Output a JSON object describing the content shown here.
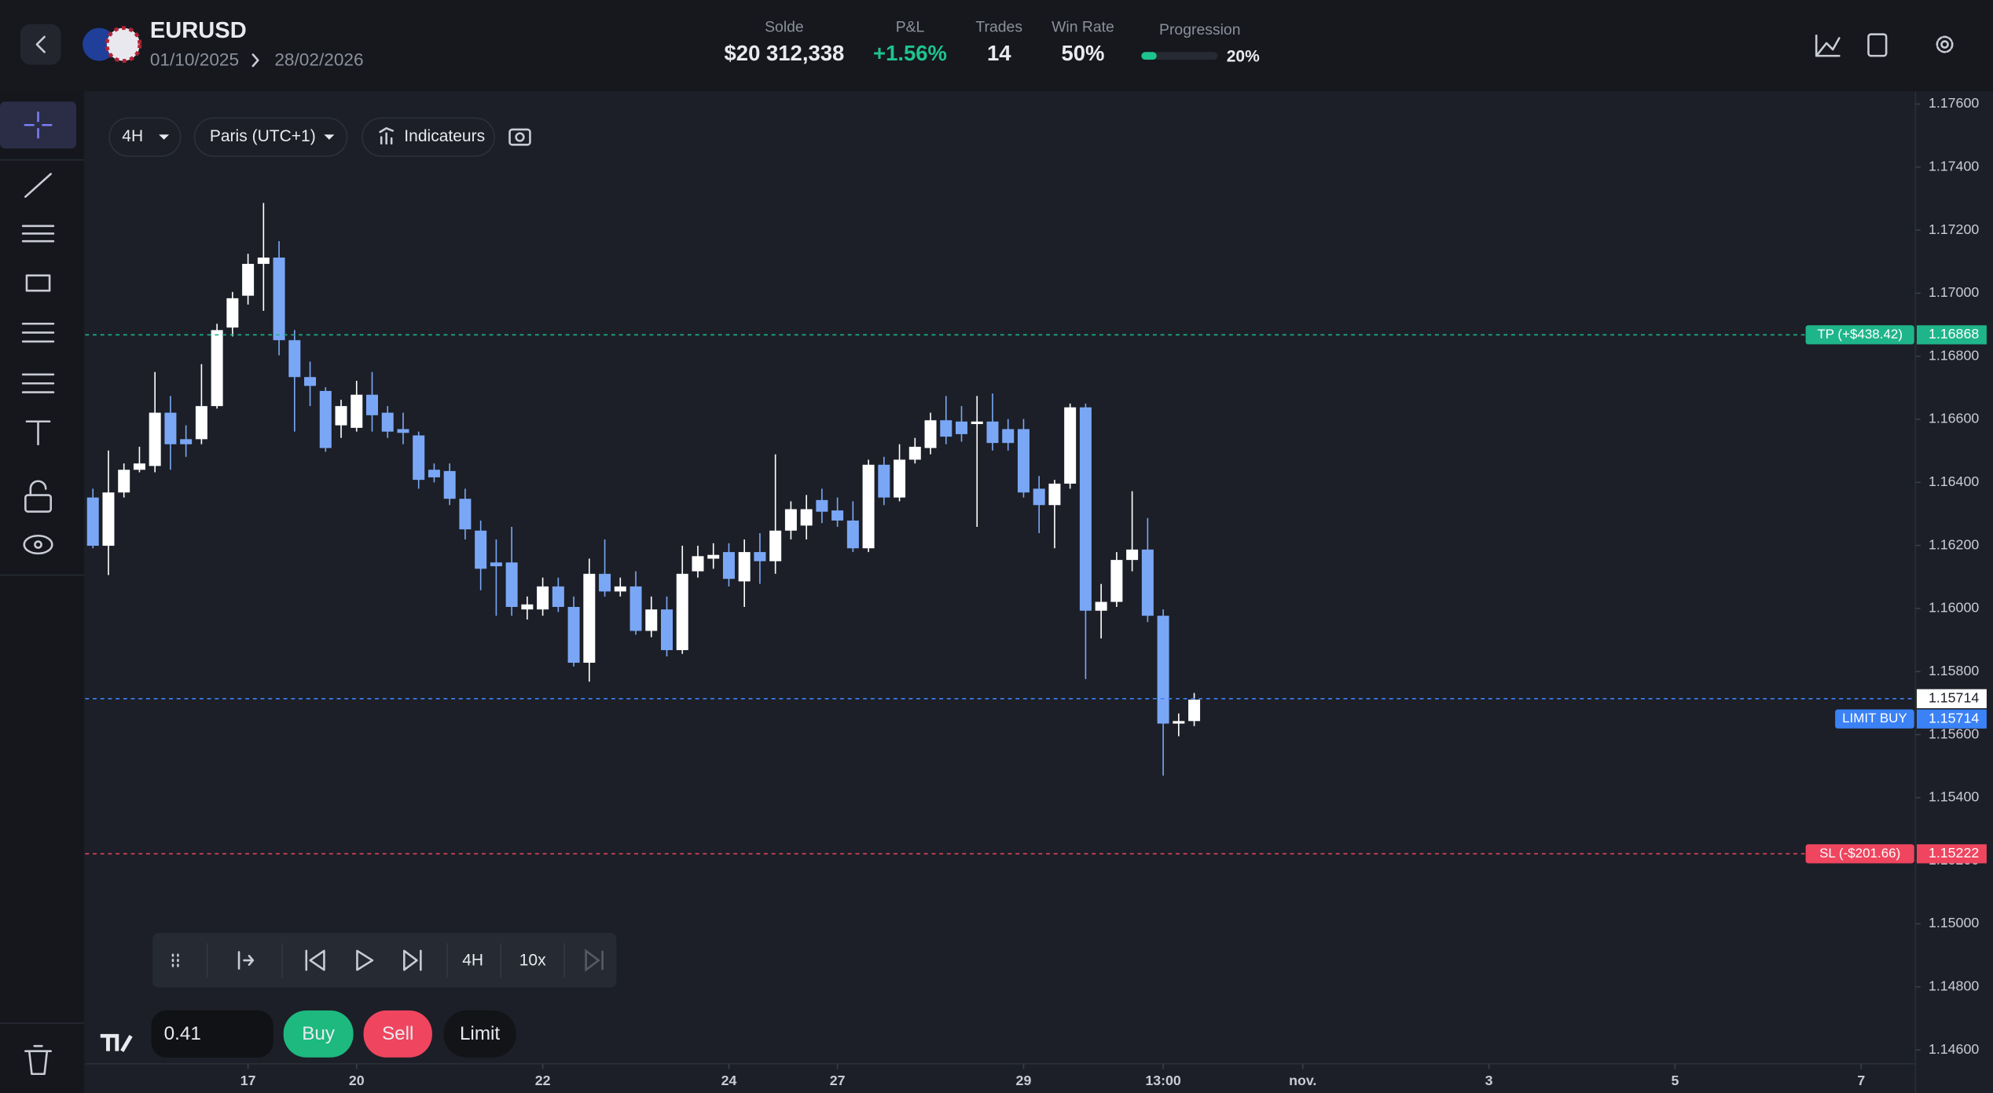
{
  "header": {
    "symbol": "EURUSD",
    "date_start": "01/10/2025",
    "date_end": "28/02/2026",
    "stats": [
      {
        "label": "Solde",
        "value": "$20 312,338"
      },
      {
        "label": "P&L",
        "value": "+1.56%"
      },
      {
        "label": "Trades",
        "value": "14"
      },
      {
        "label": "Win Rate",
        "value": "50%"
      }
    ],
    "progression": {
      "label": "Progression",
      "value": 20,
      "value_label": "20%"
    }
  },
  "toolbar": {
    "interval": "4H",
    "timezone": "Paris (UTC+1)",
    "indicators": "Indicateurs"
  },
  "replay": {
    "interval": "4H",
    "speed": "10x"
  },
  "order": {
    "quantity": "0.41",
    "buy": "Buy",
    "sell": "Sell",
    "limit": "Limit"
  },
  "chart_data": {
    "type": "candlestick",
    "up_color": "#ffffff",
    "down_color": "#7aa7f5",
    "xlim": [
      -0.5,
      117.5
    ],
    "ylim": [
      1.14556,
      1.1764
    ],
    "xticks": [
      {
        "value": 10,
        "label": "17"
      },
      {
        "value": 17,
        "label": "20"
      },
      {
        "value": 29,
        "label": "22"
      },
      {
        "value": 41,
        "label": "24"
      },
      {
        "value": 48,
        "label": "27"
      },
      {
        "value": 60,
        "label": "29"
      },
      {
        "value": 69,
        "label": "13:00"
      },
      {
        "value": 78,
        "label": "nov."
      },
      {
        "value": 90,
        "label": "3"
      },
      {
        "value": 102,
        "label": "5"
      },
      {
        "value": 114,
        "label": "7"
      }
    ],
    "yticks": [
      {
        "value": 1.146,
        "label": "1.14600"
      },
      {
        "value": 1.148,
        "label": "1.14800"
      },
      {
        "value": 1.15,
        "label": "1.15000"
      },
      {
        "value": 1.152,
        "label": "1.15200"
      },
      {
        "value": 1.154,
        "label": "1.15400"
      },
      {
        "value": 1.156,
        "label": "1.15600"
      },
      {
        "value": 1.158,
        "label": "1.15800"
      },
      {
        "value": 1.16,
        "label": "1.16000"
      },
      {
        "value": 1.162,
        "label": "1.16200"
      },
      {
        "value": 1.164,
        "label": "1.16400"
      },
      {
        "value": 1.166,
        "label": "1.16600"
      },
      {
        "value": 1.168,
        "label": "1.16800"
      },
      {
        "value": 1.17,
        "label": "1.17000"
      },
      {
        "value": 1.172,
        "label": "1.17200"
      },
      {
        "value": 1.174,
        "label": "1.17400"
      },
      {
        "value": 1.176,
        "label": "1.17600"
      }
    ],
    "candles": [
      [
        1.16352,
        1.1638,
        1.16191,
        1.16199
      ],
      [
        1.16199,
        1.16501,
        1.16106,
        1.16368
      ],
      [
        1.16368,
        1.1646,
        1.16352,
        1.1644
      ],
      [
        1.1644,
        1.16513,
        1.16432,
        1.1646
      ],
      [
        1.16452,
        1.1675,
        1.16432,
        1.16621
      ],
      [
        1.16621,
        1.16674,
        1.1644,
        1.16521
      ],
      [
        1.16537,
        1.16581,
        1.16481,
        1.16521
      ],
      [
        1.16537,
        1.16775,
        1.16521,
        1.16642
      ],
      [
        1.16642,
        1.16903,
        1.16634,
        1.16883
      ],
      [
        1.16891,
        1.17004,
        1.16863,
        1.16984
      ],
      [
        1.16992,
        1.17125,
        1.16964,
        1.17093
      ],
      [
        1.17093,
        1.17286,
        1.16944,
        1.17113
      ],
      [
        1.17113,
        1.17165,
        1.16803,
        1.16851
      ],
      [
        1.16851,
        1.16883,
        1.16561,
        1.16734
      ],
      [
        1.16734,
        1.16783,
        1.16642,
        1.16706
      ],
      [
        1.1669,
        1.16702,
        1.16497,
        1.16509
      ],
      [
        1.16581,
        1.16662,
        1.16541,
        1.16642
      ],
      [
        1.16573,
        1.16722,
        1.16561,
        1.16678
      ],
      [
        1.16678,
        1.1675,
        1.16561,
        1.16613
      ],
      [
        1.16621,
        1.16642,
        1.16541,
        1.16561
      ],
      [
        1.16569,
        1.16621,
        1.16521,
        1.16557
      ],
      [
        1.16549,
        1.16561,
        1.1638,
        1.16408
      ],
      [
        1.1644,
        1.1646,
        1.164,
        1.16416
      ],
      [
        1.16436,
        1.1646,
        1.16328,
        1.16348
      ],
      [
        1.16348,
        1.1638,
        1.16219,
        1.16251
      ],
      [
        1.16247,
        1.16279,
        1.16058,
        1.16126
      ],
      [
        1.16146,
        1.16219,
        1.15977,
        1.16134
      ],
      [
        1.16146,
        1.16259,
        1.15977,
        1.16005
      ],
      [
        1.15997,
        1.16038,
        1.15965,
        1.16013
      ],
      [
        1.15997,
        1.16098,
        1.15977,
        1.1607
      ],
      [
        1.1607,
        1.16098,
        1.15989,
        1.16005
      ],
      [
        1.16005,
        1.16038,
        1.15816,
        1.15828
      ],
      [
        1.15828,
        1.16158,
        1.15768,
        1.1611
      ],
      [
        1.1611,
        1.16219,
        1.16038,
        1.16054
      ],
      [
        1.16054,
        1.16098,
        1.16038,
        1.1607
      ],
      [
        1.1607,
        1.16118,
        1.15917,
        1.15929
      ],
      [
        1.15929,
        1.16038,
        1.15909,
        1.15997
      ],
      [
        1.15997,
        1.16038,
        1.15848,
        1.15868
      ],
      [
        1.15868,
        1.16199,
        1.15856,
        1.1611
      ],
      [
        1.16118,
        1.16199,
        1.16098,
        1.16166
      ],
      [
        1.16158,
        1.16207,
        1.16126,
        1.1617
      ],
      [
        1.16179,
        1.16207,
        1.1607,
        1.16094
      ],
      [
        1.16086,
        1.16219,
        1.16005,
        1.16179
      ],
      [
        1.16179,
        1.16239,
        1.16078,
        1.1615
      ],
      [
        1.1615,
        1.16489,
        1.1611,
        1.16247
      ],
      [
        1.16247,
        1.1634,
        1.16219,
        1.16315
      ],
      [
        1.16263,
        1.1636,
        1.16219,
        1.16315
      ],
      [
        1.16344,
        1.1638,
        1.16271,
        1.16307
      ],
      [
        1.16311,
        1.16352,
        1.16259,
        1.16279
      ],
      [
        1.16279,
        1.1634,
        1.16179,
        1.16191
      ],
      [
        1.16191,
        1.16472,
        1.16179,
        1.16456
      ],
      [
        1.16456,
        1.16481,
        1.16328,
        1.16352
      ],
      [
        1.16352,
        1.16521,
        1.1634,
        1.16472
      ],
      [
        1.16472,
        1.16541,
        1.1646,
        1.16513
      ],
      [
        1.16509,
        1.16621,
        1.16489,
        1.16597
      ],
      [
        1.16597,
        1.16674,
        1.16521,
        1.16545
      ],
      [
        1.16593,
        1.16642,
        1.16529,
        1.16553
      ],
      [
        1.16585,
        1.16674,
        1.16259,
        1.16593
      ],
      [
        1.16593,
        1.16682,
        1.16501,
        1.16525
      ],
      [
        1.16569,
        1.16601,
        1.16501,
        1.16525
      ],
      [
        1.16569,
        1.16601,
        1.16352,
        1.16368
      ],
      [
        1.1638,
        1.1642,
        1.16239,
        1.16328
      ],
      [
        1.16328,
        1.16408,
        1.16191,
        1.16396
      ],
      [
        1.16396,
        1.1665,
        1.1638,
        1.16638
      ],
      [
        1.16638,
        1.1665,
        1.15776,
        1.15993
      ],
      [
        1.15993,
        1.16078,
        1.15905,
        1.16021
      ],
      [
        1.16021,
        1.16179,
        1.16005,
        1.16154
      ],
      [
        1.16154,
        1.16372,
        1.16118,
        1.16187
      ],
      [
        1.16187,
        1.16287,
        1.15957,
        1.15977
      ],
      [
        1.15977,
        1.15997,
        1.1547,
        1.15635
      ],
      [
        1.15635,
        1.15667,
        1.15595,
        1.15643
      ],
      [
        1.15643,
        1.15732,
        1.15627,
        1.15711
      ]
    ],
    "price_lines": [
      {
        "label": "TP (+$438.42)",
        "value": 1.16868,
        "color": "#1fb58a"
      },
      {
        "label": "LIMIT BUY",
        "value": 1.15714,
        "color": "#3b82f6"
      },
      {
        "label": "SL (-$201.66)",
        "value": 1.15222,
        "color": "#f0455f"
      }
    ],
    "last_price": 1.15714
  }
}
